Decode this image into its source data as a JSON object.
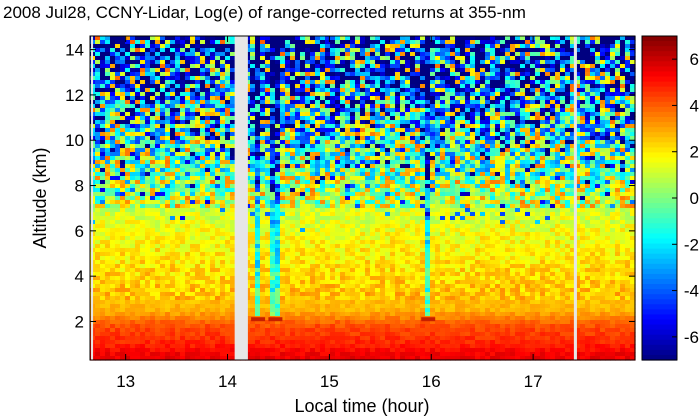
{
  "chart_data": {
    "type": "heatmap",
    "title": "2008 Jul28, CCNY-Lidar, Log(e) of range-corrected returns at 355-nm",
    "xlabel": "Local time (hour)",
    "ylabel": "Altitude (km)",
    "xlim": [
      12.65,
      18.0
    ],
    "ylim": [
      0.3,
      14.6
    ],
    "xticks": [
      13,
      14,
      15,
      16,
      17
    ],
    "yticks": [
      2,
      4,
      6,
      8,
      10,
      12,
      14
    ],
    "colorbar": {
      "range": [
        -7,
        7
      ],
      "ticks": [
        6,
        4,
        2,
        0,
        -2,
        -4,
        -6
      ],
      "colormap": "jet"
    },
    "data_gaps_hours": [
      [
        12.66,
        12.68
      ],
      [
        14.07,
        14.2
      ],
      [
        17.4,
        17.43
      ]
    ],
    "boundary_layer_top_km": 2.1,
    "cloud_events": [
      {
        "time_hour": 14.3,
        "altitude_km": 2.1
      },
      {
        "time_hour": 14.47,
        "altitude_km": 2.1
      },
      {
        "time_hour": 15.97,
        "altitude_km": 2.1
      }
    ],
    "vertical_profile_levels": [
      {
        "altitude_km": 0.5,
        "value": 5.5
      },
      {
        "altitude_km": 1.0,
        "value": 4.8
      },
      {
        "altitude_km": 1.8,
        "value": 4.2
      },
      {
        "altitude_km": 2.5,
        "value": 2.8
      },
      {
        "altitude_km": 4.0,
        "value": 2.3
      },
      {
        "altitude_km": 6.0,
        "value": 1.6
      },
      {
        "altitude_km": 8.0,
        "value": 0.6
      },
      {
        "altitude_km": 10.0,
        "value": -0.5
      },
      {
        "altitude_km": 12.0,
        "value": -1.5
      },
      {
        "altitude_km": 14.0,
        "value": -2.5
      }
    ]
  }
}
